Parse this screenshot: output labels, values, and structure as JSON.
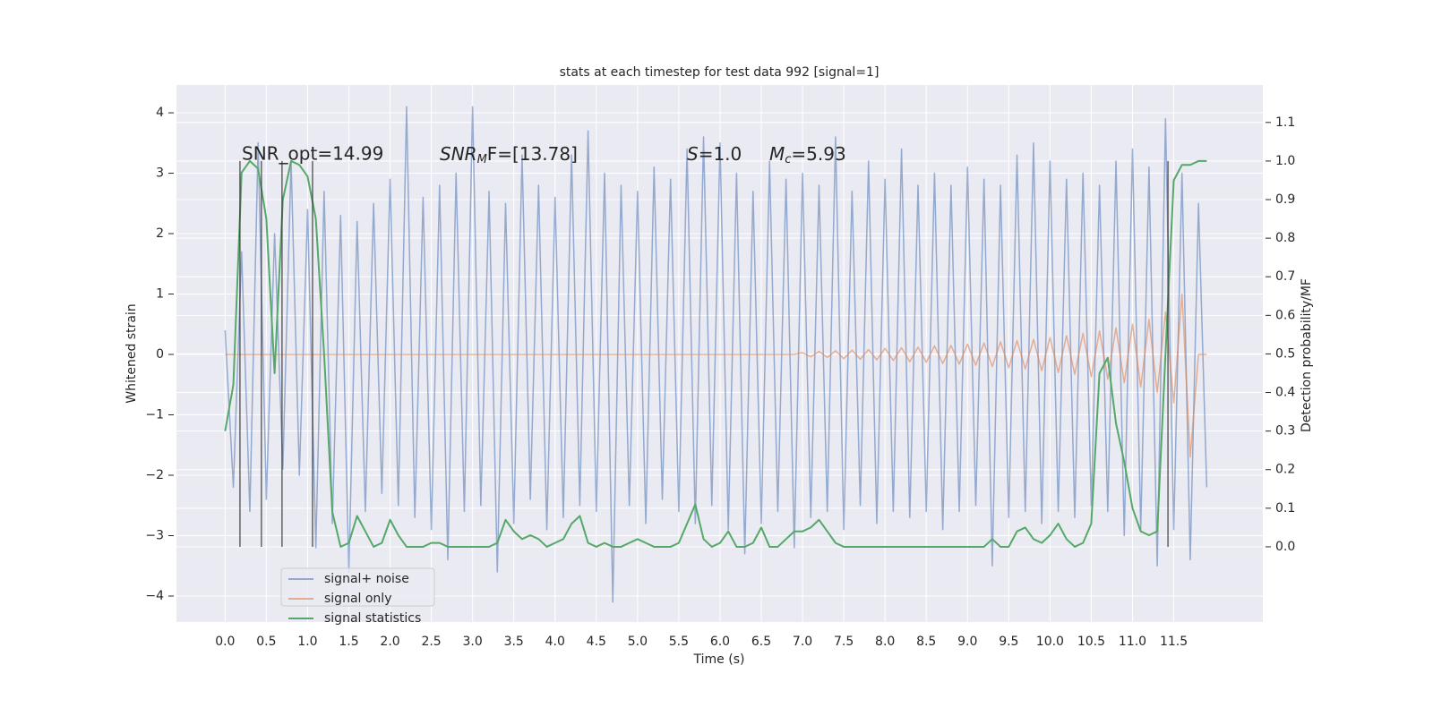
{
  "chart_data": {
    "type": "line",
    "title": "stats at each timestep for test data 992 [signal=1]",
    "xlabel": "Time (s)",
    "ylabel": "Whitened strain",
    "y2label": "Detection probability/MF",
    "annotations": [
      {
        "text": "SNR_opt=14.99"
      },
      {
        "main": "SNR",
        "sub": "M",
        "rest": "F=[13.78]"
      },
      {
        "main": "S",
        "rest": "=1.0"
      },
      {
        "main": "M",
        "sub": "c",
        "rest": "=5.93"
      }
    ],
    "x": [
      0.0,
      0.1,
      0.2,
      0.3,
      0.4,
      0.5,
      0.6,
      0.7,
      0.8,
      0.9,
      1.0,
      1.1,
      1.2,
      1.3,
      1.4,
      1.5,
      1.6,
      1.7,
      1.8,
      1.9,
      2.0,
      2.1,
      2.2,
      2.3,
      2.4,
      2.5,
      2.6,
      2.7,
      2.8,
      2.9,
      3.0,
      3.1,
      3.2,
      3.3,
      3.4,
      3.5,
      3.6,
      3.7,
      3.8,
      3.9,
      4.0,
      4.1,
      4.2,
      4.3,
      4.4,
      4.5,
      4.6,
      4.7,
      4.8,
      4.9,
      5.0,
      5.1,
      5.2,
      5.3,
      5.4,
      5.5,
      5.6,
      5.7,
      5.8,
      5.9,
      6.0,
      6.1,
      6.2,
      6.3,
      6.4,
      6.5,
      6.6,
      6.7,
      6.8,
      6.9,
      7.0,
      7.1,
      7.2,
      7.3,
      7.4,
      7.5,
      7.6,
      7.7,
      7.8,
      7.9,
      8.0,
      8.1,
      8.2,
      8.3,
      8.4,
      8.5,
      8.6,
      8.7,
      8.8,
      8.9,
      9.0,
      9.1,
      9.2,
      9.3,
      9.4,
      9.5,
      9.6,
      9.7,
      9.8,
      9.9,
      10.0,
      10.1,
      10.2,
      10.3,
      10.4,
      10.5,
      10.6,
      10.7,
      10.8,
      10.9,
      11.0,
      11.1,
      11.2,
      11.3,
      11.4,
      11.5,
      11.6,
      11.7,
      11.8,
      11.9
    ],
    "series": [
      {
        "name": "signal+ noise",
        "color": "#4c72b0",
        "values": [
          0.4,
          -2.2,
          1.7,
          -2.6,
          3.5,
          -2.4,
          2.0,
          -1.9,
          3.2,
          -2.0,
          2.4,
          -3.2,
          2.7,
          -2.8,
          2.3,
          -3.6,
          2.2,
          -2.6,
          2.5,
          -2.3,
          2.9,
          -2.5,
          4.1,
          -2.7,
          2.6,
          -2.9,
          2.8,
          -3.4,
          3.0,
          -2.6,
          4.1,
          -2.5,
          2.7,
          -3.6,
          2.5,
          -2.8,
          3.3,
          -2.4,
          2.8,
          -2.9,
          2.6,
          -2.7,
          3.3,
          -2.5,
          3.7,
          -2.6,
          3.0,
          -4.1,
          2.8,
          -2.5,
          2.7,
          -2.8,
          3.1,
          -2.4,
          2.9,
          -2.6,
          3.4,
          -2.8,
          3.6,
          -2.5,
          3.5,
          -2.9,
          3.0,
          -3.3,
          2.7,
          -2.8,
          3.2,
          -2.6,
          2.9,
          -3.2,
          3.0,
          -2.7,
          2.8,
          -2.6,
          3.6,
          -2.9,
          2.7,
          -2.5,
          3.2,
          -2.8,
          2.9,
          -2.6,
          3.4,
          -2.7,
          2.8,
          -2.6,
          3.0,
          -2.9,
          2.8,
          -2.6,
          3.1,
          -2.5,
          2.9,
          -3.5,
          2.8,
          -2.7,
          3.3,
          -2.6,
          3.5,
          -2.8,
          3.2,
          -2.6,
          2.9,
          -2.7,
          3.0,
          -2.5,
          2.8,
          -2.6,
          3.2,
          -3.0,
          3.4,
          -2.9,
          3.1,
          -3.5,
          3.9,
          -2.9,
          3.0,
          -3.4,
          2.5,
          -2.2
        ]
      },
      {
        "name": "signal only",
        "color": "#dd8452",
        "values": [
          0,
          0,
          0,
          0,
          0,
          0,
          0,
          0,
          0,
          0,
          0,
          0,
          0,
          0,
          0,
          0,
          0,
          0,
          0,
          0,
          0,
          0,
          0,
          0,
          0,
          0,
          0,
          0,
          0,
          0,
          0,
          0,
          0,
          0,
          0,
          0,
          0,
          0,
          0,
          0,
          0,
          0,
          0,
          0,
          0,
          0,
          0,
          0,
          0,
          0,
          0,
          0,
          0,
          0,
          0,
          0,
          0,
          0,
          0,
          0,
          0,
          0,
          0,
          0,
          0,
          0,
          0,
          0,
          0,
          0,
          0.03,
          -0.04,
          0.05,
          -0.05,
          0.06,
          -0.07,
          0.07,
          -0.08,
          0.08,
          -0.09,
          0.1,
          -0.1,
          0.11,
          -0.12,
          0.12,
          -0.13,
          0.14,
          -0.15,
          0.15,
          -0.16,
          0.17,
          -0.18,
          0.19,
          -0.2,
          0.21,
          -0.22,
          0.23,
          -0.24,
          0.25,
          -0.27,
          0.28,
          -0.3,
          0.31,
          -0.33,
          0.35,
          -0.37,
          0.39,
          -0.41,
          0.44,
          -0.47,
          0.5,
          -0.54,
          0.58,
          -0.63,
          0.7,
          -0.8,
          1.0,
          -1.7,
          0,
          0
        ]
      },
      {
        "name": "signal statistics",
        "color": "#55a868",
        "axis": "y2",
        "values": [
          0.3,
          0.42,
          0.97,
          1.0,
          0.98,
          0.85,
          0.45,
          0.9,
          1.0,
          0.99,
          0.96,
          0.85,
          0.5,
          0.09,
          0.0,
          0.01,
          0.08,
          0.04,
          0.0,
          0.01,
          0.07,
          0.03,
          0.0,
          0.0,
          0.0,
          0.01,
          0.01,
          0.0,
          0.0,
          0.0,
          0.0,
          0.0,
          0.0,
          0.01,
          0.07,
          0.04,
          0.02,
          0.03,
          0.02,
          0.0,
          0.01,
          0.02,
          0.06,
          0.08,
          0.01,
          0.0,
          0.01,
          0.0,
          0.0,
          0.01,
          0.02,
          0.01,
          0.0,
          0.0,
          0.0,
          0.01,
          0.06,
          0.11,
          0.02,
          0.0,
          0.01,
          0.04,
          0.0,
          0.0,
          0.01,
          0.05,
          0.0,
          0.0,
          0.02,
          0.04,
          0.04,
          0.05,
          0.07,
          0.04,
          0.01,
          0.0,
          0.0,
          0.0,
          0.0,
          0.0,
          0.0,
          0.0,
          0.0,
          0.0,
          0.0,
          0.0,
          0.0,
          0.0,
          0.0,
          0.0,
          0.0,
          0.0,
          0.0,
          0.02,
          0.0,
          0.0,
          0.04,
          0.05,
          0.02,
          0.01,
          0.03,
          0.06,
          0.02,
          0.0,
          0.01,
          0.06,
          0.45,
          0.49,
          0.32,
          0.22,
          0.1,
          0.04,
          0.03,
          0.04,
          0.5,
          0.95,
          0.99,
          0.99,
          1.0,
          1.0
        ]
      }
    ],
    "vlines": [
      0.18,
      0.44,
      0.69,
      1.06,
      11.43
    ],
    "xlim": [
      -0.59,
      12.58
    ],
    "xticks": [
      {
        "value": 0,
        "label": "0.0"
      },
      0.5,
      {
        "value": 1,
        "label": "1.0"
      },
      1.5,
      {
        "value": 2,
        "label": "2.0"
      },
      2.5,
      {
        "value": 3,
        "label": "3.0"
      },
      3.5,
      {
        "value": 4,
        "label": "4.0"
      },
      4.5,
      {
        "value": 5,
        "label": "5.0"
      },
      5.5,
      {
        "value": 6,
        "label": "6.0"
      },
      6.5,
      {
        "value": 7,
        "label": "7.0"
      },
      7.5,
      {
        "value": 8,
        "label": "8.0"
      },
      8.5,
      {
        "value": 9,
        "label": "9.0"
      },
      9.5,
      {
        "value": 10,
        "label": "10.0"
      },
      10.5,
      {
        "value": 11,
        "label": "11.0"
      },
      11.5
    ],
    "ylim": [
      -4.43,
      4.46
    ],
    "yticks": [
      {
        "value": -4,
        "label": "−4"
      },
      {
        "value": -3,
        "label": "−3"
      },
      {
        "value": -2,
        "label": "−2"
      },
      {
        "value": -1,
        "label": "−1"
      },
      0,
      1,
      2,
      3,
      4
    ],
    "y2lim": [
      -0.195,
      1.197
    ],
    "y2ticks": [
      {
        "value": 0,
        "label": "0.0"
      },
      0.1,
      0.2,
      0.3,
      0.4,
      0.5,
      0.6,
      0.7,
      0.8,
      0.9,
      {
        "value": 1,
        "label": "1.0"
      },
      1.1
    ],
    "grid": true,
    "legend": "lower left"
  }
}
